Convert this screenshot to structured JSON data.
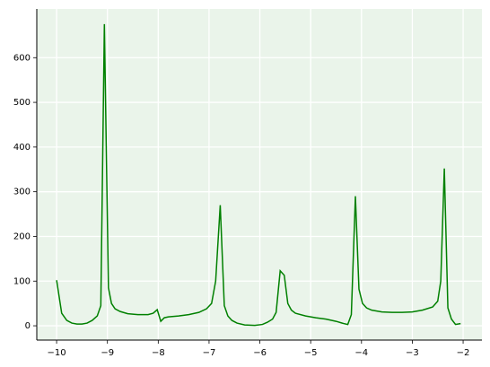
{
  "chart_data": {
    "type": "line",
    "grid": true,
    "x": [
      -10,
      -9.9,
      -9.8,
      -9.7,
      -9.6,
      -9.5,
      -9.4,
      -9.3,
      -9.2,
      -9.13,
      -9.06,
      -8.98,
      -8.92,
      -8.85,
      -8.75,
      -8.6,
      -8.4,
      -8.2,
      -8.1,
      -8.02,
      -7.95,
      -7.88,
      -7.8,
      -7.6,
      -7.4,
      -7.2,
      -7.05,
      -6.95,
      -6.87,
      -6.78,
      -6.7,
      -6.63,
      -6.55,
      -6.45,
      -6.3,
      -6.1,
      -5.95,
      -5.85,
      -5.75,
      -5.68,
      -5.6,
      -5.52,
      -5.45,
      -5.38,
      -5.3,
      -5.1,
      -4.9,
      -4.7,
      -4.5,
      -4.35,
      -4.27,
      -4.2,
      -4.12,
      -4.05,
      -3.98,
      -3.9,
      -3.8,
      -3.6,
      -3.4,
      -3.2,
      -3.0,
      -2.8,
      -2.6,
      -2.5,
      -2.44,
      -2.37,
      -2.3,
      -2.23,
      -2.15,
      -2.05
    ],
    "series": [
      {
        "color": "#008000",
        "values": [
          102,
          28,
          12,
          6,
          4,
          4,
          6,
          12,
          22,
          45,
          675,
          85,
          50,
          38,
          32,
          27,
          25,
          25,
          28,
          36,
          10,
          18,
          20,
          22,
          25,
          30,
          38,
          50,
          100,
          270,
          45,
          22,
          12,
          6,
          2,
          1,
          3,
          8,
          15,
          30,
          123,
          113,
          50,
          35,
          28,
          22,
          18,
          15,
          10,
          5,
          3,
          25,
          290,
          82,
          50,
          40,
          35,
          31,
          30,
          30,
          31,
          35,
          42,
          55,
          100,
          352,
          40,
          15,
          3,
          5
        ]
      }
    ],
    "xlim": [
      -10.39,
      -1.63
    ],
    "ylim": [
      -32,
      709
    ],
    "xticks": [
      {
        "value": -10,
        "label": "−10"
      },
      {
        "value": -9,
        "label": "−9"
      },
      {
        "value": -8,
        "label": "−8"
      },
      {
        "value": -7,
        "label": "−7"
      },
      {
        "value": -6,
        "label": "−6"
      },
      {
        "value": -5,
        "label": "−5"
      },
      {
        "value": -4,
        "label": "−4"
      },
      {
        "value": -3,
        "label": "−3"
      },
      {
        "value": -2,
        "label": "−2"
      }
    ],
    "yticks": [
      0,
      100,
      200,
      300,
      400,
      500,
      600
    ]
  }
}
